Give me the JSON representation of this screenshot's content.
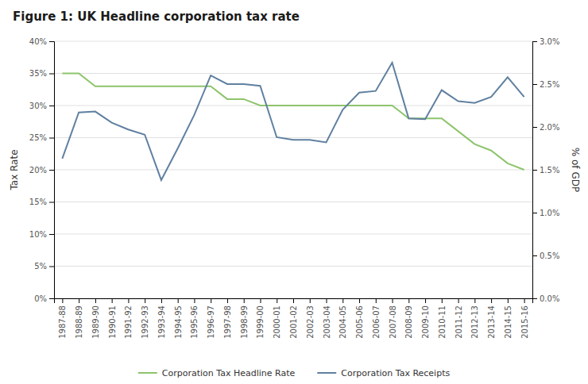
{
  "chart_data": {
    "type": "line",
    "title": "Figure 1: UK Headline corporation tax rate",
    "categories": [
      "1987-88",
      "1988-89",
      "1989-90",
      "1990-91",
      "1991-92",
      "1992-93",
      "1993-94",
      "1994-95",
      "1995-96",
      "1996-97",
      "1997-98",
      "1998-99",
      "1999-00",
      "2000-01",
      "2001-02",
      "2002-03",
      "2003-04",
      "2004-05",
      "2005-06",
      "2006-07",
      "2007-08",
      "2008-09",
      "2009-10",
      "2010-11",
      "2011-12",
      "2012-13",
      "2013-14",
      "2014-15",
      "2015-16"
    ],
    "series": [
      {
        "name": "Corporation Tax Headline Rate",
        "color": "#8dc46c",
        "axis": "y",
        "values": [
          35,
          35,
          33,
          33,
          33,
          33,
          33,
          33,
          33,
          33,
          31,
          31,
          30,
          30,
          30,
          30,
          30,
          30,
          30,
          30,
          30,
          28,
          28,
          28,
          26,
          24,
          23,
          21,
          20
        ]
      },
      {
        "name": "Corporation Tax Receipts",
        "color": "#6080a0",
        "axis": "y2",
        "values": [
          1.63,
          2.17,
          2.18,
          2.05,
          1.97,
          1.91,
          1.38,
          1.75,
          2.14,
          2.6,
          2.5,
          2.5,
          2.48,
          1.88,
          1.85,
          1.85,
          1.82,
          2.2,
          2.4,
          2.42,
          2.75,
          2.1,
          2.09,
          2.43,
          2.3,
          2.28,
          2.35,
          2.58,
          2.35
        ]
      }
    ],
    "ylabel": "Tax Rate",
    "y2label": "% of GDP",
    "ylim": [
      0,
      40
    ],
    "yticks": [
      {
        "value": 0,
        "label": "0%"
      },
      {
        "value": 5,
        "label": "5%"
      },
      {
        "value": 10,
        "label": "10%"
      },
      {
        "value": 15,
        "label": "15%"
      },
      {
        "value": 20,
        "label": "20%"
      },
      {
        "value": 25,
        "label": "25%"
      },
      {
        "value": 30,
        "label": "30%"
      },
      {
        "value": 35,
        "label": "35%"
      },
      {
        "value": 40,
        "label": "40%"
      }
    ],
    "y2lim": [
      0.0,
      3.0
    ],
    "y2ticks": [
      {
        "value": 0.0,
        "label": "0.0%"
      },
      {
        "value": 0.5,
        "label": "0.5%"
      },
      {
        "value": 1.0,
        "label": "1.0%"
      },
      {
        "value": 1.5,
        "label": "1.5%"
      },
      {
        "value": 2.0,
        "label": "2.0%"
      },
      {
        "value": 2.5,
        "label": "2.5%"
      },
      {
        "value": 3.0,
        "label": "3.0%"
      }
    ],
    "grid": true,
    "legend": "bottom"
  }
}
